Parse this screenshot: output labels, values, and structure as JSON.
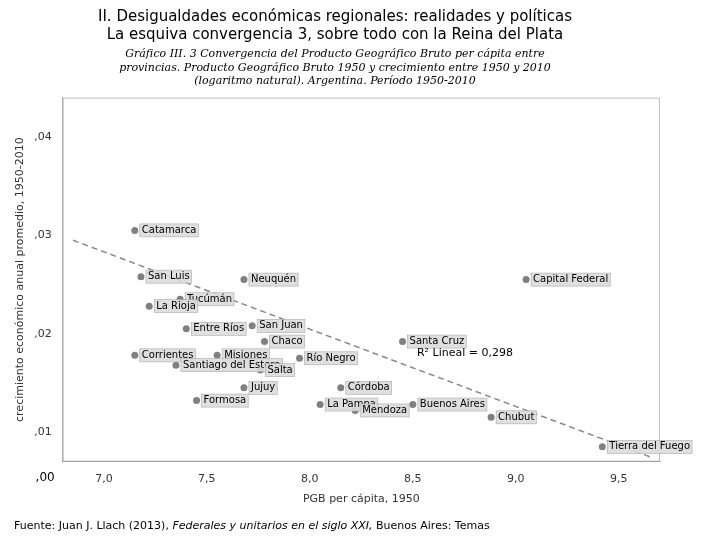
{
  "chart_data": {
    "type": "scatter",
    "title": [
      "II. Desigualdades económicas regionales: realidades y políticas",
      "La esquiva convergencia 3, sobre todo con la Reina del Plata"
    ],
    "subtitle": [
      "Gráfico III. 3 Convergencia del Producto Geográfico Bruto per cápita entre",
      "provincias. Producto Geográfico Bruto 1950 y crecimiento entre 1950 y 2010",
      "(logaritmo natural). Argentina. Período 1950-2010"
    ],
    "xlabel": "PGB per cápita, 1950",
    "ylabel": "crecimiento económico anual promedio, 1950-2010",
    "xlim": [
      6.8,
      9.7
    ],
    "ylim": [
      0.007,
      0.044
    ],
    "xticks": [
      {
        "value": 7.0,
        "label": "7,0"
      },
      {
        "value": 7.5,
        "label": "7,5"
      },
      {
        "value": 8.0,
        "label": "8,0"
      },
      {
        "value": 8.5,
        "label": "8,5"
      },
      {
        "value": 9.0,
        "label": "9,0"
      },
      {
        "value": 9.5,
        "label": "9,5"
      }
    ],
    "yticks": [
      {
        "value": 0.01,
        "label": ",01"
      },
      {
        "value": 0.02,
        "label": ",02"
      },
      {
        "value": 0.03,
        "label": ",03"
      },
      {
        "value": 0.04,
        "label": ",04"
      }
    ],
    "grid": false,
    "series": [
      {
        "type": "scatter",
        "color": "#808080",
        "marker": "circle",
        "labels": [
          "Catamarca",
          "San Luis",
          "Neuquén",
          "Capital Federal",
          "Tucúmán",
          "La Rioja",
          "Entre Ríos",
          "San Juan",
          "Chaco",
          "Santa Cruz",
          "Corrientes",
          "Misiones",
          "Santiago del Estero",
          "Salta",
          "Río Negro",
          "Jujuy",
          "Córdoba",
          "Formosa",
          "La Pampa",
          "Mendoza",
          "Buenos Aires",
          "Chubut",
          "Tierra del Fuego"
        ],
        "x": [
          7.15,
          7.18,
          7.68,
          9.05,
          7.37,
          7.22,
          7.4,
          7.72,
          7.78,
          8.45,
          7.15,
          7.55,
          7.35,
          7.76,
          7.95,
          7.68,
          8.15,
          7.45,
          8.05,
          8.22,
          8.5,
          8.88,
          9.42
        ],
        "values": [
          0.0305,
          0.0258,
          0.0255,
          0.0255,
          0.0235,
          0.0228,
          0.0205,
          0.0208,
          0.0192,
          0.0192,
          0.0178,
          0.0178,
          0.0168,
          0.0163,
          0.0175,
          0.0145,
          0.0145,
          0.0132,
          0.0128,
          0.0122,
          0.0128,
          0.0115,
          0.0085
        ]
      },
      {
        "type": "line",
        "color": "#888888",
        "line_style": "dashed",
        "x": [
          6.85,
          9.65
        ],
        "values": [
          0.0295,
          0.0075
        ]
      }
    ],
    "annotations": [
      {
        "text": "R² Lineal = 0,298",
        "x": 8.52,
        "y": 0.018
      },
      {
        "text": ",00"
      }
    ],
    "source": [
      "Fuente: Juan J. Llach (2013), ",
      "Federales y unitarios en el siglo XXI,",
      " Buenos Aires: Temas"
    ]
  }
}
